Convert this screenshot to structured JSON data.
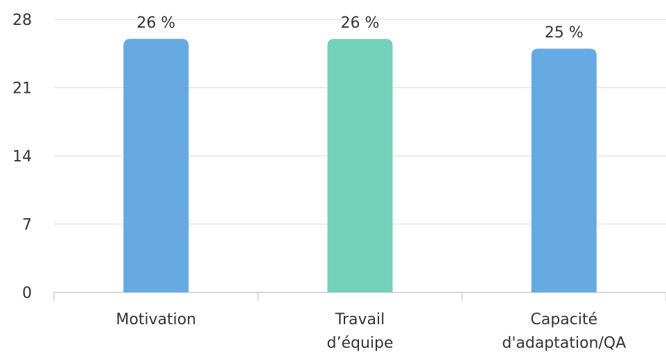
{
  "chart_data": {
    "type": "bar",
    "title": "",
    "xlabel": "",
    "ylabel": "",
    "ylim": [
      0,
      28
    ],
    "yticks": [
      0,
      7,
      14,
      21,
      28
    ],
    "grid": true,
    "categories": [
      [
        "Motivation"
      ],
      [
        "Travail",
        "d’équipe"
      ],
      [
        "Capacité",
        "d'adaptation/QA"
      ]
    ],
    "values": [
      26,
      26,
      25
    ],
    "data_labels": [
      "26 %",
      "26 %",
      "25 %"
    ],
    "colors": [
      "#67a9e3",
      "#72d1b8",
      "#67a9e3"
    ],
    "grid_color": "#e6e6e6",
    "axis_color": "#cccccc"
  }
}
